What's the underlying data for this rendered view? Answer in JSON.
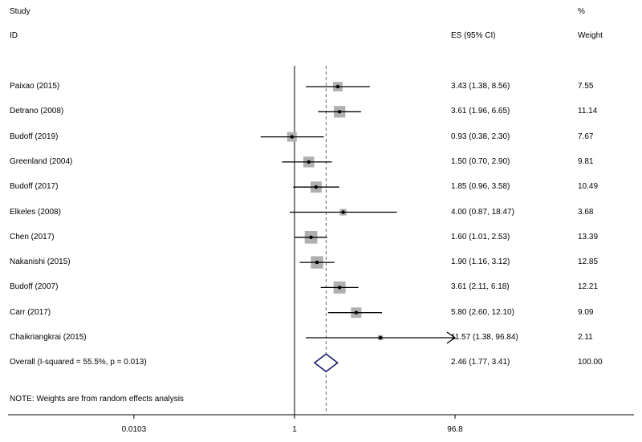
{
  "headers": {
    "study_line1": "Study",
    "study_line2": "ID",
    "es_header": "ES (95% CI)",
    "pct_line1": "%",
    "pct_line2": "Weight"
  },
  "note": "NOTE: Weights are from random effects analysis",
  "colors": {
    "box": "#b0b0b0",
    "diamond": "#1a1a6e",
    "line": "#000000",
    "null_dash": "#666666"
  },
  "chart_data": {
    "type": "forest",
    "scale": "log",
    "null_value": 1,
    "x_ticks": [
      {
        "value": 0.0103,
        "label": "0.0103"
      },
      {
        "value": 1,
        "label": "1"
      },
      {
        "value": 96.8,
        "label": "96.8"
      }
    ],
    "studies": [
      {
        "label": "Paixao (2015)",
        "es": 3.43,
        "lo": 1.38,
        "hi": 8.56,
        "es_text": "3.43 (1.38, 8.56)",
        "weight": 7.55,
        "weight_text": "7.55"
      },
      {
        "label": "Detrano (2008)",
        "es": 3.61,
        "lo": 1.96,
        "hi": 6.65,
        "es_text": "3.61 (1.96, 6.65)",
        "weight": 11.14,
        "weight_text": "11.14"
      },
      {
        "label": "Budoff (2019)",
        "es": 0.93,
        "lo": 0.38,
        "hi": 2.3,
        "es_text": "0.93 (0.38, 2.30)",
        "weight": 7.67,
        "weight_text": "7.67"
      },
      {
        "label": "Greenland (2004)",
        "es": 1.5,
        "lo": 0.7,
        "hi": 2.9,
        "es_text": "1.50 (0.70, 2.90)",
        "weight": 9.81,
        "weight_text": "9.81"
      },
      {
        "label": "Budoff (2017)",
        "es": 1.85,
        "lo": 0.96,
        "hi": 3.58,
        "es_text": "1.85 (0.96, 3.58)",
        "weight": 10.49,
        "weight_text": "10.49"
      },
      {
        "label": "Elkeles (2008)",
        "es": 4.0,
        "lo": 0.87,
        "hi": 18.47,
        "es_text": "4.00 (0.87, 18.47)",
        "weight": 3.68,
        "weight_text": "3.68"
      },
      {
        "label": "Chen (2017)",
        "es": 1.6,
        "lo": 1.01,
        "hi": 2.53,
        "es_text": "1.60 (1.01, 2.53)",
        "weight": 13.39,
        "weight_text": "13.39"
      },
      {
        "label": "Nakanishi (2015)",
        "es": 1.9,
        "lo": 1.16,
        "hi": 3.12,
        "es_text": "1.90 (1.16, 3.12)",
        "weight": 12.85,
        "weight_text": "12.85"
      },
      {
        "label": "Budoff (2007)",
        "es": 3.61,
        "lo": 2.11,
        "hi": 6.18,
        "es_text": "3.61 (2.11, 6.18)",
        "weight": 12.21,
        "weight_text": "12.21"
      },
      {
        "label": "Carr (2017)",
        "es": 5.8,
        "lo": 2.6,
        "hi": 12.1,
        "es_text": "5.80 (2.60, 12.10)",
        "weight": 9.09,
        "weight_text": "9.09"
      },
      {
        "label": "Chaikriangkrai (2015)",
        "es": 11.57,
        "lo": 1.38,
        "hi": 96.84,
        "es_text": "11.57 (1.38, 96.84)",
        "weight": 2.11,
        "weight_text": "2.11",
        "arrow_right": true
      }
    ],
    "overall": {
      "label": "Overall  (I-squared = 55.5%, p = 0.013)",
      "es": 2.46,
      "lo": 1.77,
      "hi": 3.41,
      "es_text": "2.46 (1.77, 3.41)",
      "weight_text": "100.00"
    }
  }
}
